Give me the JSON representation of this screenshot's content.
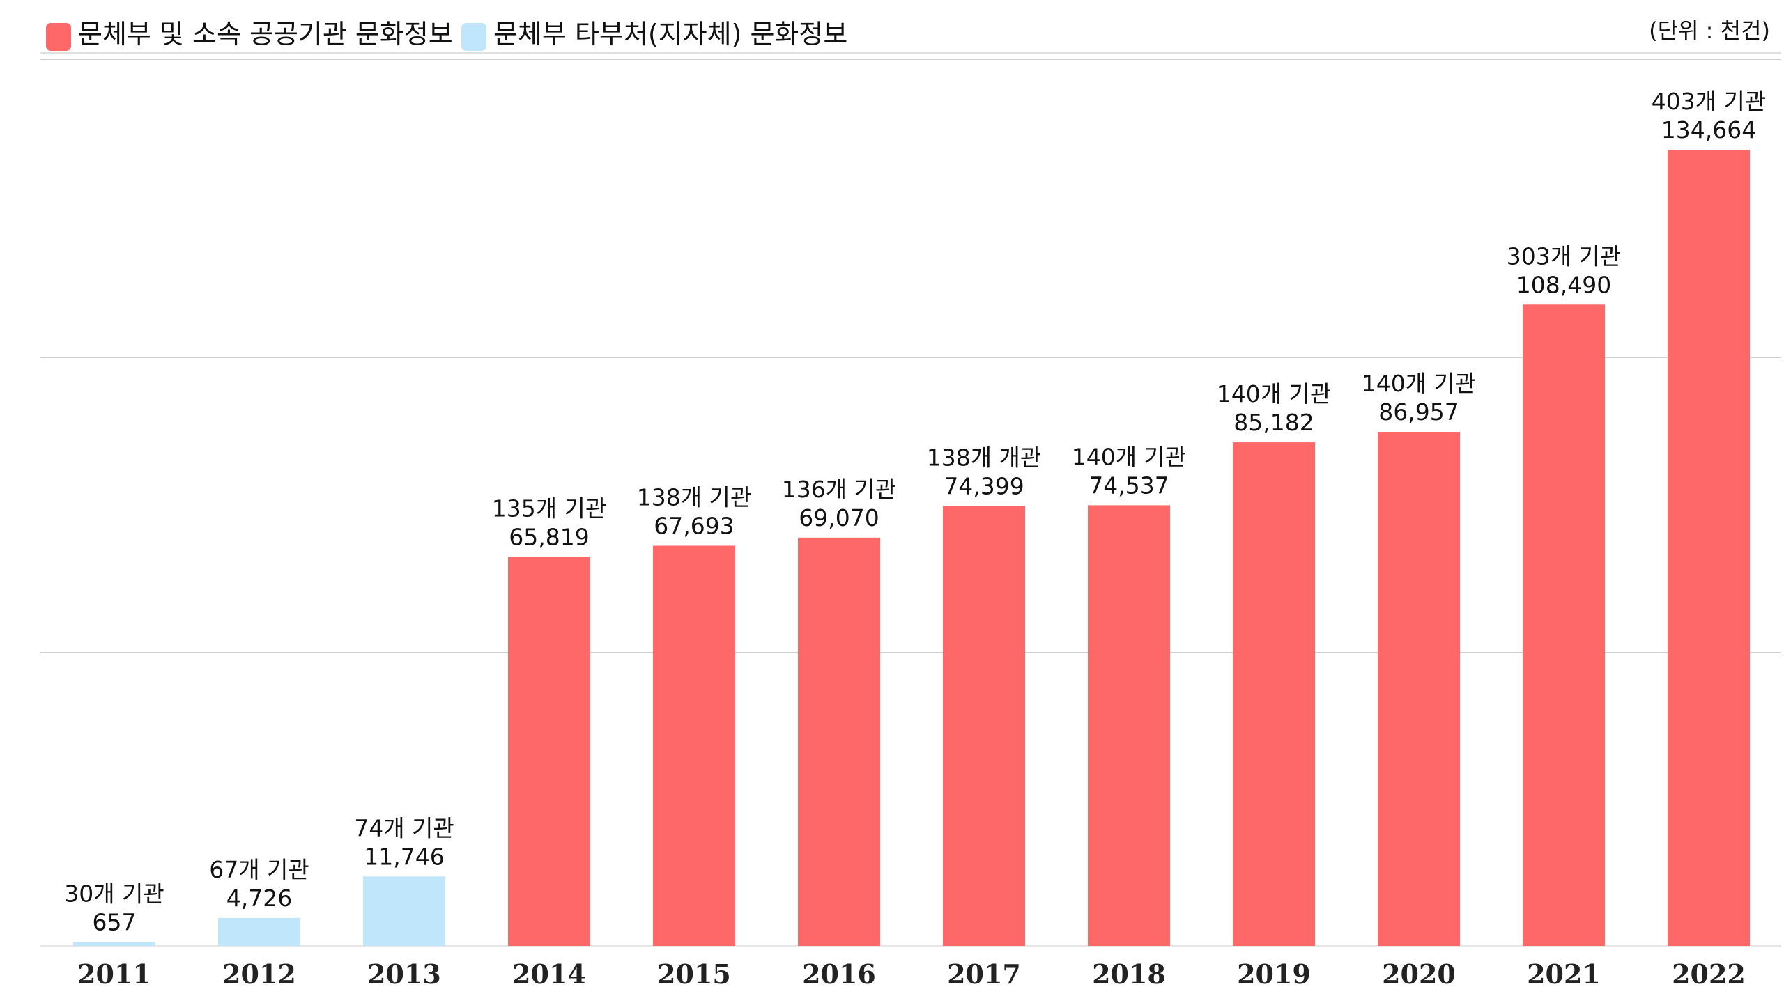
{
  "legend": {
    "items": [
      {
        "label": "문체부 및 소속 공공기관 문화정보",
        "color": "#FF6868"
      },
      {
        "label": "문체부 타부처(지자체) 문화정보",
        "color": "#BFE6FA"
      }
    ]
  },
  "unit_label": "(단위 : 천건)",
  "chart_data": {
    "type": "bar",
    "categories": [
      "2011",
      "2012",
      "2013",
      "2014",
      "2015",
      "2016",
      "2017",
      "2018",
      "2019",
      "2020",
      "2021",
      "2022"
    ],
    "values": [
      657,
      4726,
      11746,
      65819,
      67693,
      69070,
      74399,
      74537,
      85182,
      86957,
      108490,
      134664
    ],
    "value_labels": [
      "657",
      "4,726",
      "11,746",
      "65,819",
      "67,693",
      "69,070",
      "74,399",
      "74,537",
      "85,182",
      "86,957",
      "108,490",
      "134,664"
    ],
    "annotations": [
      "30개 기관",
      "67개 기관",
      "74개 기관",
      "135개 기관",
      "138개 기관",
      "136개 기관",
      "138개 개관",
      "140개 기관",
      "140개 기관",
      "140개 기관",
      "303개 기관",
      "403개 기관"
    ],
    "series_index": [
      1,
      1,
      1,
      0,
      0,
      0,
      0,
      0,
      0,
      0,
      0,
      0
    ],
    "ylim": [
      0,
      150000
    ],
    "grid": true,
    "legend_position": "top-left"
  }
}
